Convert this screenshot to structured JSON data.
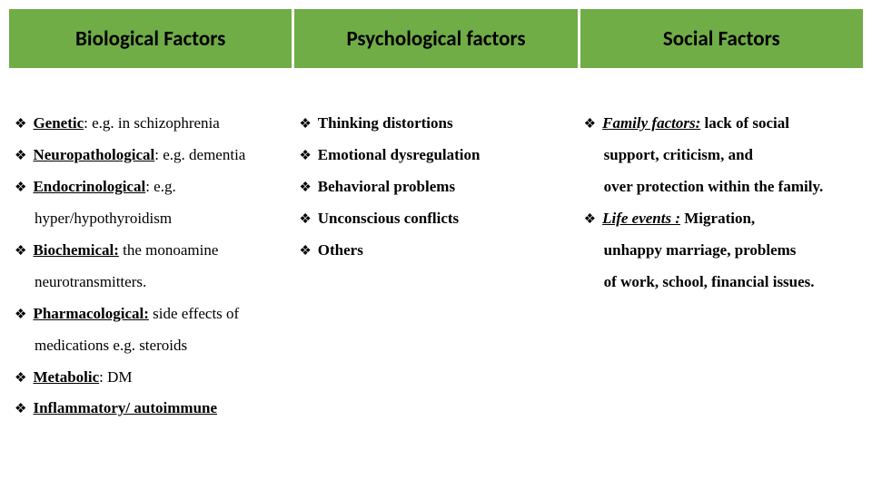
{
  "headers": {
    "col1": "Biological Factors",
    "col2": "Psychological factors",
    "col3": "Social Factors"
  },
  "bullet_glyph": "❖",
  "col1": {
    "i1_bold": "Genetic",
    "i1_rest": ": e.g. in schizophrenia",
    "i2_bold": "Neuropathological",
    "i2_rest": ": e.g. dementia",
    "i3_bold": "Endocrinological",
    "i3_rest": ": e.g.",
    "i3_line2": "hyper/hypothyroidism",
    "i4_bold": "Biochemical:",
    "i4_rest": " the monoamine",
    "i4_line2": "neurotransmitters.",
    "i5_bold": "Pharmacological:",
    "i5_rest": " side effects of",
    "i5_line2": "medications e.g. steroids",
    "i6_bold": "Metabolic",
    "i6_rest": ": DM",
    "i7_bold": "Inflammatory/ autoimmune"
  },
  "col2": {
    "i1": "Thinking distortions",
    "i2": "Emotional dysregulation",
    "i3": "Behavioral problems",
    "i4": "Unconscious conflicts",
    "i5": "Others"
  },
  "col3": {
    "i1_u": "Family factors:",
    "i1_rest": " lack of social",
    "i1_line2": "support, criticism, and",
    "i1_line3": "over protection within the family.",
    "i2_u": "Life events :",
    "i2_rest": " Migration,",
    "i2_line2": "unhappy marriage, problems",
    "i2_line3": "of work, school, financial issues."
  },
  "colors": {
    "header_bg": "#70ad47",
    "text": "#000000",
    "background": "#ffffff"
  }
}
